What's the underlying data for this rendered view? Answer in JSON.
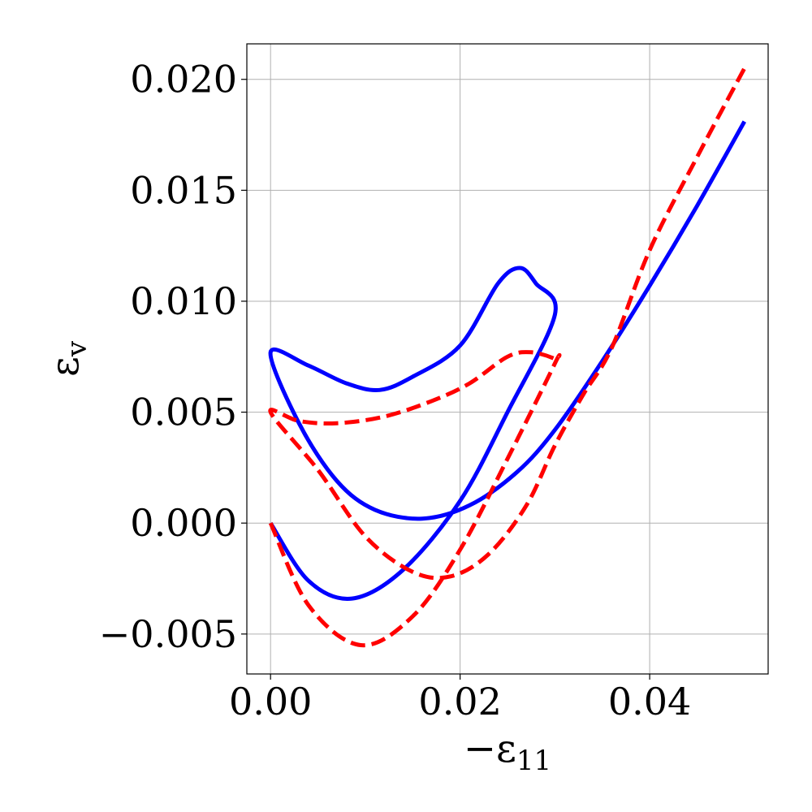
{
  "chart_data": {
    "type": "line",
    "title": "",
    "xlabel": "−ε",
    "xlabel_sub": "11",
    "ylabel": "ε",
    "ylabel_sub": "v",
    "xlim": [
      -0.0025,
      0.0525
    ],
    "ylim": [
      -0.0068,
      0.0216
    ],
    "x_ticks": [
      0.0,
      0.02,
      0.04
    ],
    "x_tick_labels": [
      "0.00",
      "0.02",
      "0.04"
    ],
    "y_ticks": [
      -0.005,
      0.0,
      0.005,
      0.01,
      0.015,
      0.02
    ],
    "y_tick_labels": [
      "−0.005",
      "0.000",
      "0.005",
      "0.010",
      "0.015",
      "0.020"
    ],
    "grid": true,
    "legend": "none",
    "series": [
      {
        "color": "#0000ff",
        "style": "solid",
        "x": [
          0.0,
          0.004,
          0.0086,
          0.014,
          0.02,
          0.025,
          0.03,
          0.028,
          0.0263,
          0.024,
          0.02,
          0.015,
          0.0115,
          0.008,
          0.004,
          0.0,
          0.003,
          0.007,
          0.011,
          0.016,
          0.021,
          0.026,
          0.03,
          0.035,
          0.04,
          0.045,
          0.05
        ],
        "y": [
          0.0,
          -0.0026,
          -0.0034,
          -0.0021,
          0.001,
          0.005,
          0.0094,
          0.0108,
          0.0115,
          0.0108,
          0.008,
          0.0066,
          0.006,
          0.0063,
          0.0071,
          0.0077,
          0.0045,
          0.0019,
          0.0006,
          0.0002,
          0.0008,
          0.0023,
          0.0042,
          0.0073,
          0.0107,
          0.0143,
          0.0181
        ]
      },
      {
        "color": "#ff0000",
        "style": "dashed",
        "x": [
          0.0,
          0.004,
          0.0095,
          0.015,
          0.02,
          0.025,
          0.03,
          0.03,
          0.0275,
          0.025,
          0.021,
          0.017,
          0.012,
          0.007,
          0.003,
          0.0,
          0.005,
          0.01,
          0.015,
          0.019,
          0.023,
          0.027,
          0.03,
          0.033,
          0.036,
          0.04,
          0.045,
          0.05
        ],
        "y": [
          0.0,
          -0.0037,
          -0.0055,
          -0.0042,
          -0.0012,
          0.0029,
          0.0072,
          0.0074,
          0.0077,
          0.0075,
          0.0063,
          0.0055,
          0.0048,
          0.0045,
          0.0046,
          0.005,
          0.0024,
          -0.0006,
          -0.0022,
          -0.0024,
          -0.0014,
          0.0008,
          0.0035,
          0.0058,
          0.0079,
          0.0123,
          0.0165,
          0.0205
        ]
      }
    ]
  }
}
